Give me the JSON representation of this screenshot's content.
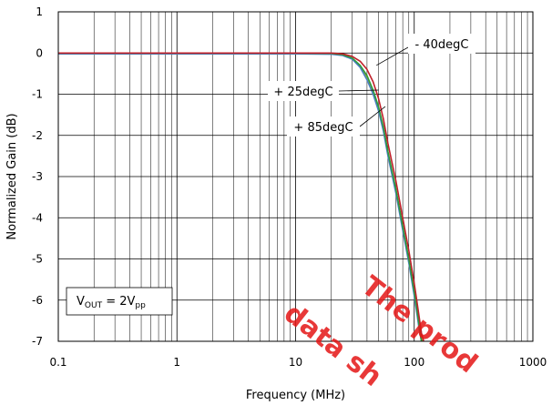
{
  "chart_data": {
    "type": "line",
    "title": "",
    "xlabel": "Frequency (MHz)",
    "ylabel": "Normalized Gain (dB)",
    "x_scale": "log",
    "xlim": [
      0.1,
      1000
    ],
    "ylim": [
      -7,
      1
    ],
    "x_tick_labels": [
      "0.1",
      "1",
      "10",
      "100",
      "1000"
    ],
    "y_tick_labels": [
      "1",
      "0",
      "-1",
      "-2",
      "-3",
      "-4",
      "-5",
      "-6",
      "-7"
    ],
    "grid": true,
    "series": [
      {
        "name": "- 40degC",
        "color": "#c0202a",
        "x": [
          0.1,
          1,
          10,
          20,
          25,
          30,
          35,
          40,
          45,
          50,
          55,
          60,
          70,
          80,
          90,
          100,
          105,
          110,
          115,
          120
        ],
        "y": [
          0,
          0,
          0,
          0,
          -0.02,
          -0.08,
          -0.2,
          -0.4,
          -0.7,
          -1.1,
          -1.6,
          -2.2,
          -3.1,
          -4.0,
          -4.8,
          -5.6,
          -6.0,
          -6.4,
          -6.8,
          -7.0
        ]
      },
      {
        "name": "+ 25degC",
        "color": "#2e9a3a",
        "x": [
          0.1,
          1,
          10,
          20,
          25,
          30,
          35,
          40,
          45,
          50,
          55,
          60,
          70,
          80,
          90,
          100,
          105,
          110,
          115
        ],
        "y": [
          0,
          0,
          0,
          -0.01,
          -0.04,
          -0.12,
          -0.3,
          -0.55,
          -0.9,
          -1.3,
          -1.8,
          -2.4,
          -3.3,
          -4.2,
          -5.0,
          -5.8,
          -6.2,
          -6.6,
          -7.0
        ]
      },
      {
        "name": "+ 85degC",
        "color": "#4a7fc4",
        "x": [
          0.1,
          1,
          10,
          20,
          25,
          30,
          35,
          40,
          45,
          50,
          55,
          60,
          70,
          80,
          90,
          100,
          105,
          110,
          115
        ],
        "y": [
          -0.02,
          -0.02,
          -0.02,
          -0.03,
          -0.06,
          -0.15,
          -0.35,
          -0.65,
          -1.0,
          -1.4,
          -1.9,
          -2.5,
          -3.4,
          -4.3,
          -5.1,
          -5.9,
          -6.3,
          -6.7,
          -7.0
        ]
      },
      {
        "name": "",
        "color": "#b8b020",
        "x": [
          0.1,
          1,
          10,
          20,
          25,
          30,
          35,
          40,
          45,
          50,
          55,
          60,
          70,
          80,
          90,
          100,
          105,
          110,
          115,
          118
        ],
        "y": [
          0,
          0,
          -0.01,
          -0.02,
          -0.05,
          -0.13,
          -0.32,
          -0.6,
          -0.95,
          -1.35,
          -1.85,
          -2.45,
          -3.35,
          -4.25,
          -5.05,
          -5.85,
          -6.25,
          -6.65,
          -6.95,
          -7.0
        ]
      }
    ],
    "annotations": [
      {
        "text": "- 40degC",
        "target": [
          48,
          -0.3
        ]
      },
      {
        "text": "+ 25degC",
        "target": [
          50,
          -0.9
        ]
      },
      {
        "text": "+ 85degC",
        "target": [
          57,
          -1.3
        ]
      }
    ],
    "condition_label": {
      "prefix": "V",
      "sub1": "OUT",
      "middle": " = 2V",
      "sub2": "pp"
    },
    "watermark": {
      "line1": "The prod",
      "line2": "data sh"
    }
  }
}
